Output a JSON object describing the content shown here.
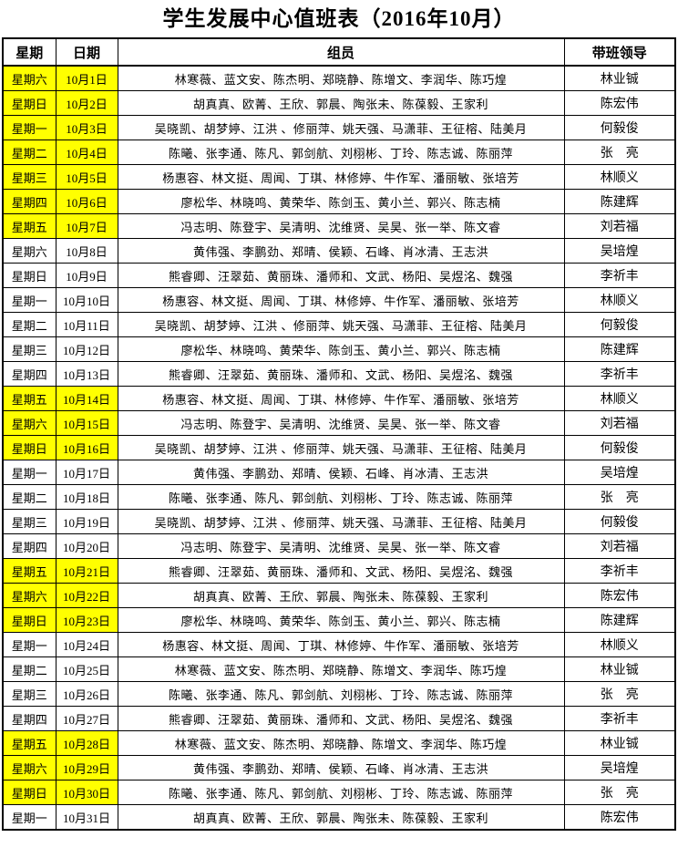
{
  "title": "学生发展中心值班表（2016年10月）",
  "colors": {
    "highlight": "#FFFF00",
    "border": "#000000",
    "text": "#000000",
    "background": "#FFFFFF"
  },
  "table": {
    "headers": [
      "星期",
      "日期",
      "组员",
      "带班领导"
    ],
    "rows": [
      {
        "weekday": "星期六",
        "date": "10月1日",
        "members": "林寒薇、蓝文安、陈杰明、郑晓静、陈增文、李润华、陈巧煌",
        "leader": "林业铖",
        "highlight": true
      },
      {
        "weekday": "星期日",
        "date": "10月2日",
        "members": "胡真真、欧菁、王欣、郭晨、陶张未、陈葆毅、王家利",
        "leader": "陈宏伟",
        "highlight": true
      },
      {
        "weekday": "星期一",
        "date": "10月3日",
        "members": "吴晓凯、胡梦婷、江洪 、修丽萍、姚天强、马潇菲、王征榕、陆美月",
        "leader": "何毅俊",
        "highlight": true
      },
      {
        "weekday": "星期二",
        "date": "10月4日",
        "members": "陈曦、张李通、陈凡、郭剑航、刘栩彬、丁玲、陈志诚、陈丽萍",
        "leader": "张　亮",
        "highlight": true
      },
      {
        "weekday": "星期三",
        "date": "10月5日",
        "members": "杨惠容、林文挺、周闻、丁琪、林修婷、牛作军、潘丽敏、张培芳",
        "leader": "林顺义",
        "highlight": true
      },
      {
        "weekday": "星期四",
        "date": "10月6日",
        "members": "廖松华、林晓鸣、黄荣华、陈剑玉、黄小兰、郭兴、陈志楠",
        "leader": "陈建辉",
        "highlight": true
      },
      {
        "weekday": "星期五",
        "date": "10月7日",
        "members": "冯志明、陈登宇、吴清明、沈维贤、吴昊、张一举、陈文睿",
        "leader": "刘若福",
        "highlight": true
      },
      {
        "weekday": "星期六",
        "date": "10月8日",
        "members": "黄伟强、李鹏劲、郑晴、侯颖、石峰、肖冰清、王志洪",
        "leader": "吴培煌",
        "highlight": false
      },
      {
        "weekday": "星期日",
        "date": "10月9日",
        "members": "熊睿卿、汪翠茹、黄丽珠、潘师和、文武、杨阳、吴煜洺、魏强",
        "leader": "李祈丰",
        "highlight": false
      },
      {
        "weekday": "星期一",
        "date": "10月10日",
        "members": "杨惠容、林文挺、周闻、丁琪、林修婷、牛作军、潘丽敏、张培芳",
        "leader": "林顺义",
        "highlight": false
      },
      {
        "weekday": "星期二",
        "date": "10月11日",
        "members": "吴晓凯、胡梦婷、江洪 、修丽萍、姚天强、马潇菲、王征榕、陆美月",
        "leader": "何毅俊",
        "highlight": false
      },
      {
        "weekday": "星期三",
        "date": "10月12日",
        "members": "廖松华、林晓鸣、黄荣华、陈剑玉、黄小兰、郭兴、陈志楠",
        "leader": "陈建辉",
        "highlight": false
      },
      {
        "weekday": "星期四",
        "date": "10月13日",
        "members": "熊睿卿、汪翠茹、黄丽珠、潘师和、文武、杨阳、吴煜洺、魏强",
        "leader": "李祈丰",
        "highlight": false
      },
      {
        "weekday": "星期五",
        "date": "10月14日",
        "members": "杨惠容、林文挺、周闻、丁琪、林修婷、牛作军、潘丽敏、张培芳",
        "leader": "林顺义",
        "highlight": true
      },
      {
        "weekday": "星期六",
        "date": "10月15日",
        "members": "冯志明、陈登宇、吴清明、沈维贤、吴昊、张一举、陈文睿",
        "leader": "刘若福",
        "highlight": true
      },
      {
        "weekday": "星期日",
        "date": "10月16日",
        "members": "吴晓凯、胡梦婷、江洪 、修丽萍、姚天强、马潇菲、王征榕、陆美月",
        "leader": "何毅俊",
        "highlight": true
      },
      {
        "weekday": "星期一",
        "date": "10月17日",
        "members": "黄伟强、李鹏劲、郑晴、侯颖、石峰、肖冰清、王志洪",
        "leader": "吴培煌",
        "highlight": false
      },
      {
        "weekday": "星期二",
        "date": "10月18日",
        "members": "陈曦、张李通、陈凡、郭剑航、刘栩彬、丁玲、陈志诚、陈丽萍",
        "leader": "张　亮",
        "highlight": false
      },
      {
        "weekday": "星期三",
        "date": "10月19日",
        "members": "吴晓凯、胡梦婷、江洪 、修丽萍、姚天强、马潇菲、王征榕、陆美月",
        "leader": "何毅俊",
        "highlight": false
      },
      {
        "weekday": "星期四",
        "date": "10月20日",
        "members": "冯志明、陈登宇、吴清明、沈维贤、吴昊、张一举、陈文睿",
        "leader": "刘若福",
        "highlight": false
      },
      {
        "weekday": "星期五",
        "date": "10月21日",
        "members": "熊睿卿、汪翠茹、黄丽珠、潘师和、文武、杨阳、吴煜洺、魏强",
        "leader": "李祈丰",
        "highlight": true
      },
      {
        "weekday": "星期六",
        "date": "10月22日",
        "members": "胡真真、欧菁、王欣、郭晨、陶张未、陈葆毅、王家利",
        "leader": "陈宏伟",
        "highlight": true
      },
      {
        "weekday": "星期日",
        "date": "10月23日",
        "members": "廖松华、林晓鸣、黄荣华、陈剑玉、黄小兰、郭兴、陈志楠",
        "leader": "陈建辉",
        "highlight": true
      },
      {
        "weekday": "星期一",
        "date": "10月24日",
        "members": "杨惠容、林文挺、周闻、丁琪、林修婷、牛作军、潘丽敏、张培芳",
        "leader": "林顺义",
        "highlight": false
      },
      {
        "weekday": "星期二",
        "date": "10月25日",
        "members": "林寒薇、蓝文安、陈杰明、郑晓静、陈增文、李润华、陈巧煌",
        "leader": "林业铖",
        "highlight": false
      },
      {
        "weekday": "星期三",
        "date": "10月26日",
        "members": "陈曦、张李通、陈凡、郭剑航、刘栩彬、丁玲、陈志诚、陈丽萍",
        "leader": "张　亮",
        "highlight": false
      },
      {
        "weekday": "星期四",
        "date": "10月27日",
        "members": "熊睿卿、汪翠茹、黄丽珠、潘师和、文武、杨阳、吴煜洺、魏强",
        "leader": "李祈丰",
        "highlight": false
      },
      {
        "weekday": "星期五",
        "date": "10月28日",
        "members": "林寒薇、蓝文安、陈杰明、郑晓静、陈增文、李润华、陈巧煌",
        "leader": "林业铖",
        "highlight": true
      },
      {
        "weekday": "星期六",
        "date": "10月29日",
        "members": "黄伟强、李鹏劲、郑晴、侯颖、石峰、肖冰清、王志洪",
        "leader": "吴培煌",
        "highlight": true
      },
      {
        "weekday": "星期日",
        "date": "10月30日",
        "members": "陈曦、张李通、陈凡、郭剑航、刘栩彬、丁玲、陈志诚、陈丽萍",
        "leader": "张　亮",
        "highlight": true
      },
      {
        "weekday": "星期一",
        "date": "10月31日",
        "members": "胡真真、欧菁、王欣、郭晨、陶张未、陈葆毅、王家利",
        "leader": "陈宏伟",
        "highlight": false
      }
    ]
  }
}
